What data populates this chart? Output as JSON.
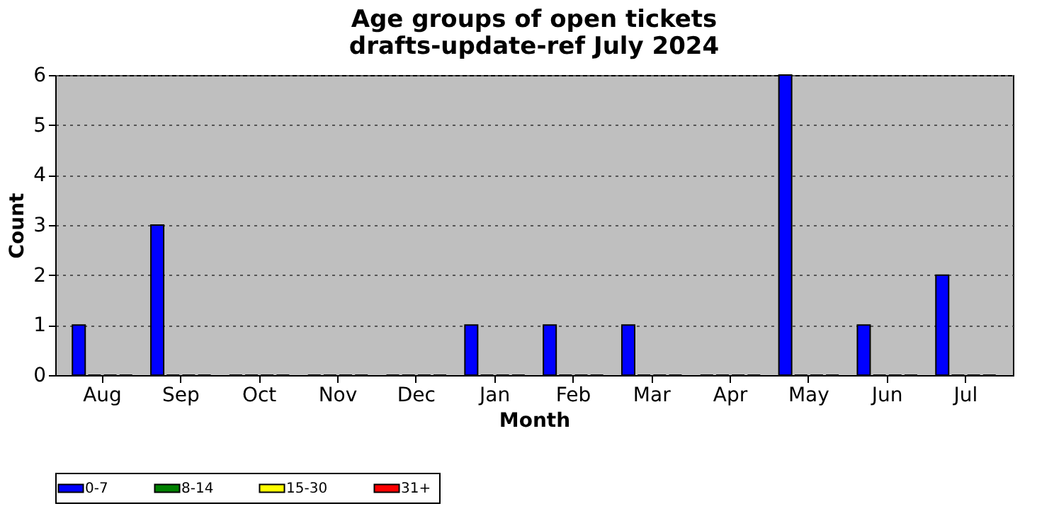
{
  "chart_data": {
    "type": "bar",
    "title": "Age groups of open tickets\ndrafts-update-ref July 2024",
    "xlabel": "Month",
    "ylabel": "Count",
    "categories": [
      "Aug",
      "Sep",
      "Oct",
      "Nov",
      "Dec",
      "Jan",
      "Feb",
      "Mar",
      "Apr",
      "May",
      "Jun",
      "Jul"
    ],
    "series": [
      {
        "name": "0-7",
        "color": "#0000ff",
        "values": [
          1,
          3,
          0,
          0,
          0,
          1,
          1,
          1,
          0,
          6,
          1,
          2
        ]
      },
      {
        "name": "8-14",
        "color": "#008000",
        "values": [
          0,
          0,
          0,
          0,
          0,
          0,
          0,
          0,
          0,
          0,
          0,
          0
        ]
      },
      {
        "name": "15-30",
        "color": "#ffff00",
        "values": [
          0,
          0,
          0,
          0,
          0,
          0,
          0,
          0,
          0,
          0,
          0,
          0
        ]
      },
      {
        "name": "31+",
        "color": "#ff0000",
        "values": [
          0,
          0,
          0,
          0,
          0,
          0,
          0,
          0,
          0,
          0,
          0,
          0
        ]
      }
    ],
    "ylim": [
      0,
      6
    ],
    "yticks": [
      0,
      1,
      2,
      3,
      4,
      5,
      6
    ],
    "grid": "y",
    "legend": "bottom"
  }
}
